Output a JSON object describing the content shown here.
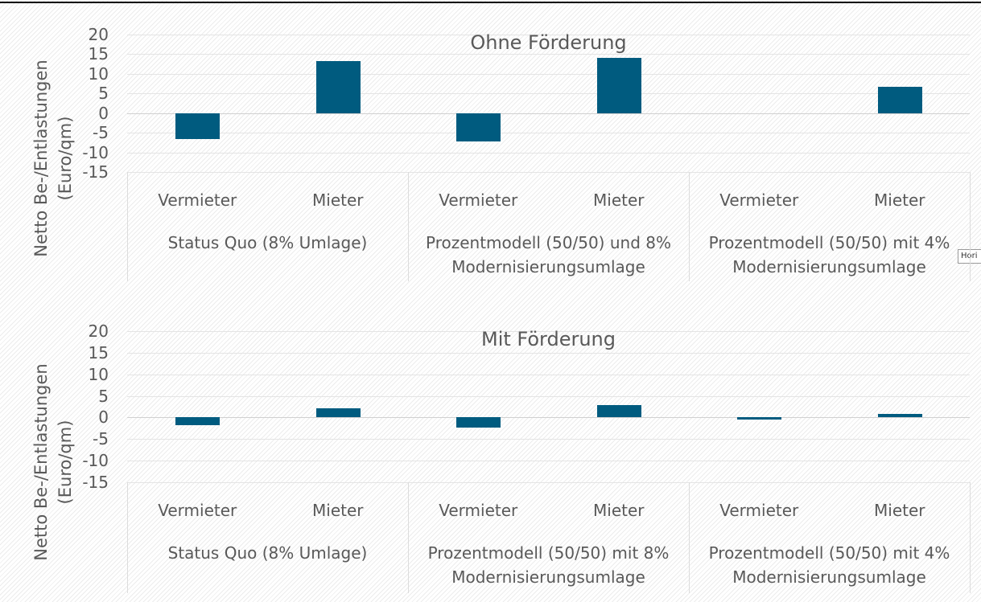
{
  "chart_data": [
    {
      "type": "bar",
      "title": "Ohne Förderung",
      "y_label": "Netto Be-/Entlastungen (Euro/qm)",
      "categories": [
        "Vermieter",
        "Mieter",
        "Vermieter",
        "Mieter",
        "Vermieter",
        "Mieter"
      ],
      "groups": [
        "Status Quo (8% Umlage)",
        "Prozentmodell (50/50) und 8% Modernisierungsumlage",
        "Prozentmodell (50/50) mit 4% Modernisierungsumlage"
      ],
      "values": [
        -6.7,
        13.3,
        -7.3,
        14.1,
        0,
        6.7
      ],
      "color": "#005b7f",
      "ylim": [
        -15,
        20
      ],
      "yticks": [
        -15,
        -10,
        -5,
        0,
        5,
        10,
        15,
        20
      ],
      "grid": true
    },
    {
      "type": "bar",
      "title": "Mit Förderung",
      "y_label": "Netto Be-/Entlastungen (Euro/qm)",
      "categories": [
        "Vermieter",
        "Mieter",
        "Vermieter",
        "Mieter",
        "Vermieter",
        "Mieter"
      ],
      "groups": [
        "Status Quo (8% Umlage)",
        "Prozentmodell (50/50) mit 8% Modernisierungsumlage",
        "Prozentmodell (50/50) mit 4% Modernisierungsumlage"
      ],
      "values": [
        -1.7,
        2.1,
        -2.4,
        2.8,
        -0.4,
        0.9
      ],
      "color": "#005b7f",
      "ylim": [
        -15,
        20
      ],
      "yticks": [
        -15,
        -10,
        -5,
        0,
        5,
        10,
        15,
        20
      ],
      "grid": true
    }
  ],
  "tooltip": "Hori"
}
